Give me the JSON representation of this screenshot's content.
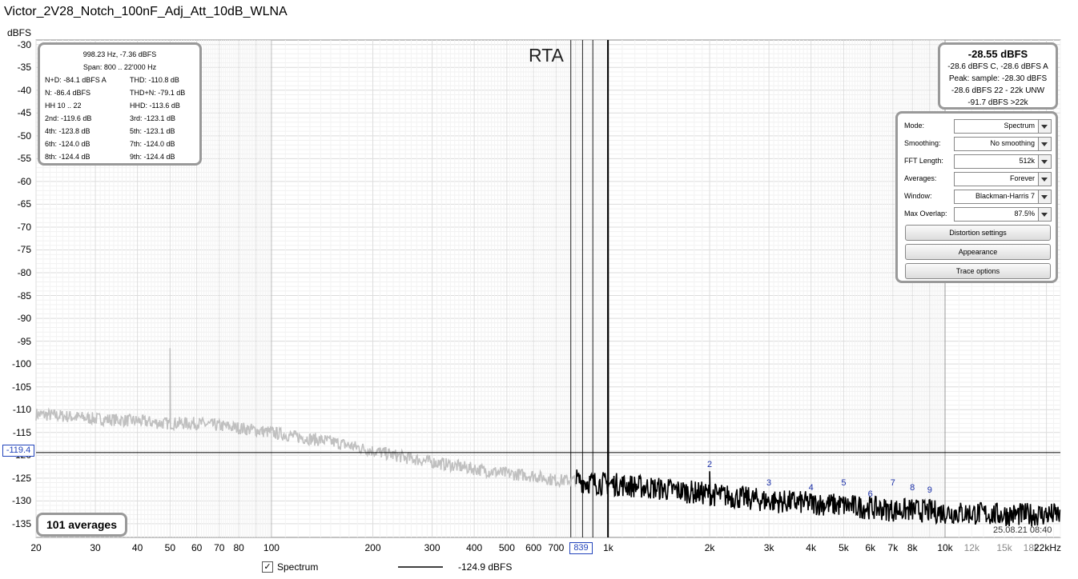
{
  "window_title": "Victor_2V28_Notch_100nF_Adj_Att_10dB_WLNA",
  "chart_data": {
    "type": "line",
    "title": "RTA",
    "ylabel": "dBFS",
    "xlabel": "",
    "x_scale": "log",
    "xlim": [
      20,
      22000
    ],
    "ylim": [
      -138,
      -29
    ],
    "y_ticks": [
      "-30",
      "-35",
      "-40",
      "-45",
      "-50",
      "-55",
      "-60",
      "-65",
      "-70",
      "-75",
      "-80",
      "-85",
      "-90",
      "-95",
      "-100",
      "-105",
      "-110",
      "-115",
      "-120",
      "-125",
      "-130",
      "-135"
    ],
    "x_ticks": [
      {
        "value": 20,
        "label": "20",
        "minor": false
      },
      {
        "value": 30,
        "label": "30",
        "minor": false
      },
      {
        "value": 40,
        "label": "40",
        "minor": false
      },
      {
        "value": 50,
        "label": "50",
        "minor": false
      },
      {
        "value": 60,
        "label": "60",
        "minor": false
      },
      {
        "value": 70,
        "label": "70",
        "minor": false
      },
      {
        "value": 80,
        "label": "80",
        "minor": false
      },
      {
        "value": 100,
        "label": "100",
        "minor": false
      },
      {
        "value": 200,
        "label": "200",
        "minor": false
      },
      {
        "value": 300,
        "label": "300",
        "minor": false
      },
      {
        "value": 400,
        "label": "400",
        "minor": false
      },
      {
        "value": 500,
        "label": "500",
        "minor": false
      },
      {
        "value": 600,
        "label": "600",
        "minor": false
      },
      {
        "value": 700,
        "label": "700",
        "minor": false
      },
      {
        "value": 1000,
        "label": "1k",
        "minor": false
      },
      {
        "value": 2000,
        "label": "2k",
        "minor": false
      },
      {
        "value": 3000,
        "label": "3k",
        "minor": false
      },
      {
        "value": 4000,
        "label": "4k",
        "minor": false
      },
      {
        "value": 5000,
        "label": "5k",
        "minor": false
      },
      {
        "value": 6000,
        "label": "6k",
        "minor": false
      },
      {
        "value": 7000,
        "label": "7k",
        "minor": false
      },
      {
        "value": 8000,
        "label": "8k",
        "minor": false
      },
      {
        "value": 10000,
        "label": "10k",
        "minor": false
      },
      {
        "value": 12000,
        "label": "12k",
        "minor": true
      },
      {
        "value": 15000,
        "label": "15k",
        "minor": true
      },
      {
        "value": 18000,
        "label": "18k",
        "minor": true
      },
      {
        "value": 22000,
        "label": "22kHz",
        "minor": false
      }
    ],
    "series": [
      {
        "name": "Spectrum",
        "color_outside_span": "#c0c0c0",
        "color_in_span": "#000000",
        "x": [
          20,
          25,
          30,
          40,
          48,
          50,
          52,
          60,
          70,
          80,
          100,
          120,
          150,
          200,
          250,
          300,
          400,
          500,
          600,
          700,
          800,
          900,
          998.23,
          1100,
          1500,
          2000,
          3000,
          4000,
          5000,
          6000,
          7000,
          8000,
          10000,
          15000,
          22000
        ],
        "y": [
          -111,
          -111.5,
          -112,
          -112.5,
          -113,
          -96.5,
          -113,
          -113,
          -113.5,
          -114,
          -115,
          -116,
          -117,
          -119,
          -120.5,
          -121.5,
          -123,
          -124,
          -124.5,
          -125.5,
          -125.5,
          -126,
          -7.36,
          -126.5,
          -127.5,
          -128.5,
          -130,
          -130.5,
          -131,
          -131.5,
          -132,
          -132,
          -132.5,
          -133,
          -133
        ]
      }
    ],
    "span_hz": [
      800,
      22000
    ],
    "legend": [
      {
        "name": "Spectrum",
        "value": "-124.9 dBFS"
      }
    ],
    "harmonic_markers": [
      {
        "label": "2",
        "x": 2000,
        "y": -123.5
      },
      {
        "label": "3",
        "x": 3000,
        "y": -127.5
      },
      {
        "label": "4",
        "x": 4000,
        "y": -128.5
      },
      {
        "label": "5",
        "x": 5000,
        "y": -127.5
      },
      {
        "label": "6",
        "x": 6000,
        "y": -130
      },
      {
        "label": "7",
        "x": 7000,
        "y": -127.5
      },
      {
        "label": "8",
        "x": 8000,
        "y": -128.5
      },
      {
        "label": "9",
        "x": 9000,
        "y": -129
      }
    ],
    "cursor": {
      "y_label": "-119.4",
      "x_label": "839"
    }
  },
  "stats_panel": {
    "line1": "998.23 Hz, -7.36 dBFS",
    "line2": "Span: 800 .. 22'000 Hz",
    "rows": [
      {
        "left": "N+D: -84.1 dBFS A",
        "right": "THD: -110.8 dB"
      },
      {
        "left": "N: -86.4 dBFS",
        "right": "THD+N: -79.1 dB"
      },
      {
        "left": "HH 10 .. 22",
        "right": "HHD: -113.6 dB"
      },
      {
        "left": "2nd: -119.6 dB",
        "right": "3rd: -123.1 dB"
      },
      {
        "left": "4th: -123.8 dB",
        "right": "5th: -123.1 dB"
      },
      {
        "left": "6th: -124.0 dB",
        "right": "7th: -124.0 dB"
      },
      {
        "left": "8th: -124.4 dB",
        "right": "9th: -124.4 dB"
      }
    ]
  },
  "level_panel": {
    "main": "-28.55 dBFS",
    "line1": "-28.6 dBFS C, -28.6 dBFS A",
    "line2": "Peak: sample: -28.30 dBFS",
    "line3": "-28.6 dBFS 22 - 22k UNW",
    "line4": "-91.7 dBFS >22k"
  },
  "controls": {
    "mode_label": "Mode:",
    "mode_value": "Spectrum",
    "smoothing_label": "Smoothing:",
    "smoothing_value": "No  smoothing",
    "fft_label": "FFT Length:",
    "fft_value": "512k",
    "averages_label": "Averages:",
    "averages_value": "Forever",
    "window_label": "Window:",
    "window_value": "Blackman-Harris 7",
    "overlap_label": "Max Overlap:",
    "overlap_value": "87.5%",
    "distortion_button": "Distortion settings",
    "appearance_button": "Appearance",
    "trace_button": "Trace options"
  },
  "averages_label": "101 averages",
  "timestamp": "25.08.21 08:40"
}
